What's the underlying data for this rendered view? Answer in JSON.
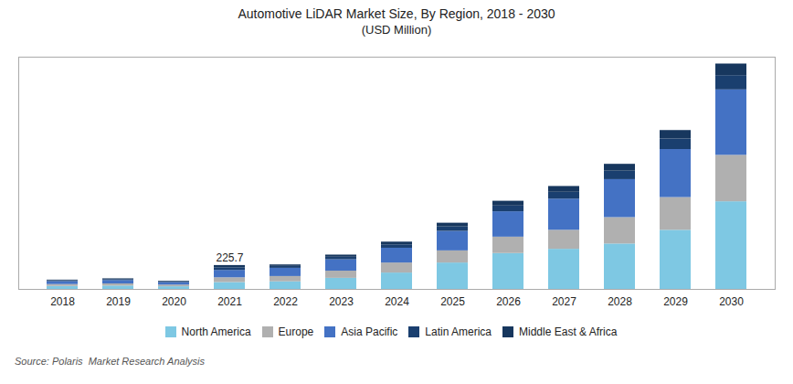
{
  "chart_data": {
    "type": "bar",
    "stacked": true,
    "title": "Automotive LiDAR Market Size, By Region, 2018 - 2030",
    "subtitle": "(USD Million)",
    "caption": "Source: Polaris  Market Research Analysis",
    "categories": [
      "2018",
      "2019",
      "2020",
      "2021",
      "2022",
      "2023",
      "2024",
      "2025",
      "2026",
      "2027",
      "2028",
      "2029",
      "2030"
    ],
    "series": [
      {
        "name": "North America",
        "color": "#7ec8e3",
        "values": [
          28,
          32,
          25,
          65,
          72,
          105,
          155,
          250,
          340,
          380,
          430,
          560,
          830
        ]
      },
      {
        "name": "Europe",
        "color": "#b0b0b0",
        "values": [
          18,
          20,
          16,
          45,
          50,
          68,
          95,
          115,
          155,
          180,
          250,
          310,
          440
        ]
      },
      {
        "name": "Asia Pacific",
        "color": "#4472c4",
        "values": [
          28,
          32,
          24,
          70,
          78,
          108,
          140,
          185,
          240,
          295,
          360,
          455,
          620
        ]
      },
      {
        "name": "Latin America",
        "color": "#1a3f6f",
        "values": [
          8,
          9,
          7,
          25,
          18,
          24,
          32,
          42,
          55,
          65,
          80,
          100,
          135
        ]
      },
      {
        "name": "Middle East & Africa",
        "color": "#17375e",
        "values": [
          6,
          7,
          6,
          21,
          14,
          20,
          26,
          35,
          45,
          55,
          65,
          80,
          110
        ]
      }
    ],
    "annotations": [
      {
        "text": "225.7",
        "x": "2021"
      }
    ],
    "ylim": [
      0,
      2200
    ],
    "grid": false,
    "legend": "bottom",
    "tick_labels": "x"
  }
}
